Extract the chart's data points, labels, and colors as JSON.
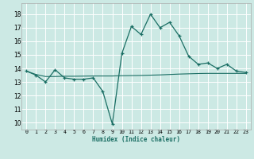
{
  "xlabel": "Humidex (Indice chaleur)",
  "x_ticks": [
    0,
    1,
    2,
    3,
    4,
    5,
    6,
    7,
    8,
    9,
    10,
    11,
    12,
    13,
    14,
    15,
    16,
    17,
    18,
    19,
    20,
    21,
    22,
    23
  ],
  "ylim": [
    9.5,
    18.8
  ],
  "xlim": [
    -0.5,
    23.5
  ],
  "yticks": [
    10,
    11,
    12,
    13,
    14,
    15,
    16,
    17,
    18
  ],
  "bg_color": "#cce9e4",
  "grid_color": "#ffffff",
  "line_color": "#1a6e64",
  "line1_x": [
    0,
    1,
    2,
    3,
    4,
    5,
    6,
    7,
    8,
    9,
    10,
    11,
    12,
    13,
    14,
    15,
    16,
    17,
    18,
    19,
    20,
    21,
    22,
    23
  ],
  "line1_y": [
    13.8,
    13.5,
    13.0,
    13.9,
    13.3,
    13.2,
    13.2,
    13.3,
    12.3,
    9.9,
    15.1,
    17.1,
    16.5,
    18.0,
    17.0,
    17.4,
    16.4,
    14.9,
    14.3,
    14.4,
    14.0,
    14.3,
    13.8,
    13.7
  ],
  "line2_x": [
    0,
    1,
    2,
    3,
    4,
    5,
    6,
    7,
    8,
    9,
    10,
    11,
    12,
    13,
    14,
    15,
    16,
    17,
    18,
    19,
    20,
    21,
    22,
    23
  ],
  "line2_y": [
    13.8,
    13.55,
    13.4,
    13.4,
    13.42,
    13.42,
    13.43,
    13.44,
    13.44,
    13.44,
    13.46,
    13.47,
    13.48,
    13.5,
    13.52,
    13.55,
    13.58,
    13.6,
    13.62,
    13.63,
    13.63,
    13.63,
    13.63,
    13.63
  ]
}
